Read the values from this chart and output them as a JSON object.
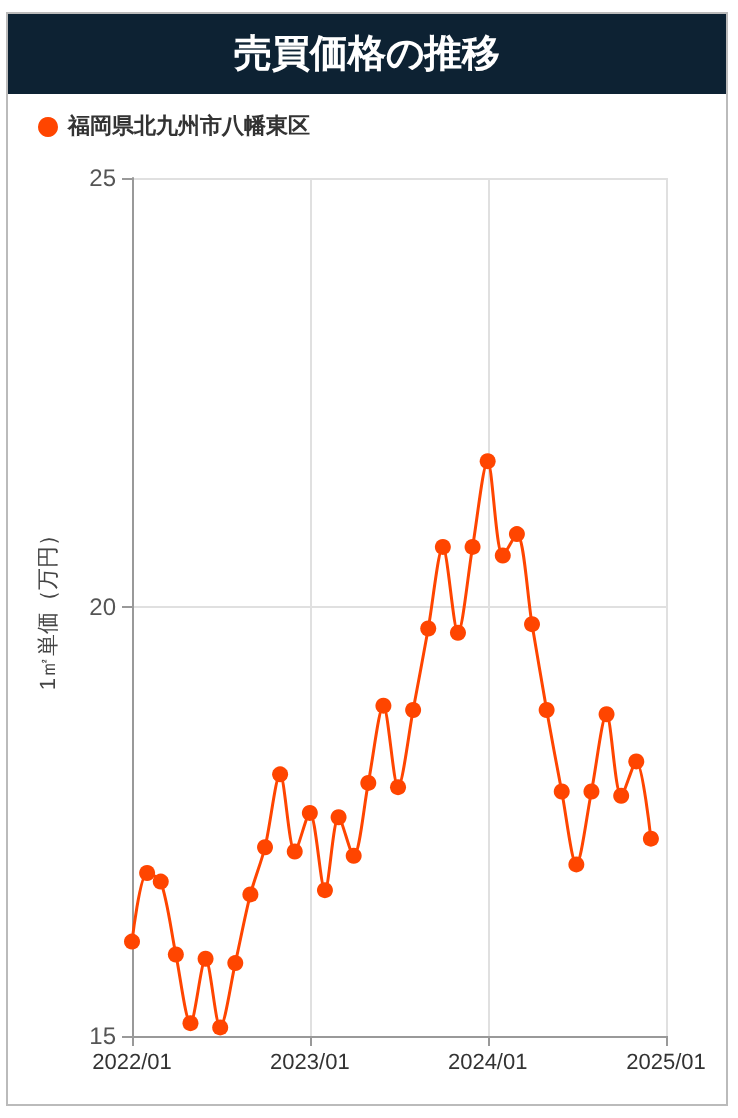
{
  "chart_data": {
    "type": "line",
    "title": "売買価格の推移",
    "ylabel": "1㎡単価（万円）",
    "x": [
      "2022-01",
      "2022-02",
      "2022-03",
      "2022-04",
      "2022-05",
      "2022-06",
      "2022-07",
      "2022-08",
      "2022-09",
      "2022-10",
      "2022-11",
      "2022-12",
      "2023-01",
      "2023-02",
      "2023-03",
      "2023-04",
      "2023-05",
      "2023-06",
      "2023-07",
      "2023-08",
      "2023-09",
      "2023-10",
      "2023-11",
      "2023-12",
      "2024-01",
      "2024-02",
      "2024-03",
      "2024-04",
      "2024-05",
      "2024-06",
      "2024-07",
      "2024-08",
      "2024-09",
      "2024-10",
      "2024-11",
      "2024-12"
    ],
    "series": [
      {
        "name": "福岡県北九州市八幡東区",
        "color": "#ff4500",
        "values": [
          16.1,
          16.9,
          16.8,
          15.95,
          15.15,
          15.9,
          15.1,
          15.85,
          16.65,
          17.2,
          18.05,
          17.15,
          17.6,
          16.7,
          17.55,
          17.1,
          17.95,
          18.85,
          17.9,
          18.8,
          19.75,
          20.7,
          19.7,
          20.7,
          21.7,
          20.6,
          20.85,
          19.8,
          18.8,
          17.85,
          17.0,
          17.85,
          18.75,
          17.8,
          18.2,
          17.3
        ]
      }
    ],
    "xlim": [
      "2022-01",
      "2025-01"
    ],
    "xticks": [
      {
        "value": "2022-01",
        "label": "2022/01"
      },
      {
        "value": "2023-01",
        "label": "2023/01"
      },
      {
        "value": "2024-01",
        "label": "2024/01"
      },
      {
        "value": "2025-01",
        "label": "2025/01"
      }
    ],
    "ylim": [
      15,
      25
    ],
    "yticks": [
      15,
      20,
      25
    ],
    "grid": true,
    "legend": "top left",
    "marker": "circle",
    "line_style": "solid"
  }
}
